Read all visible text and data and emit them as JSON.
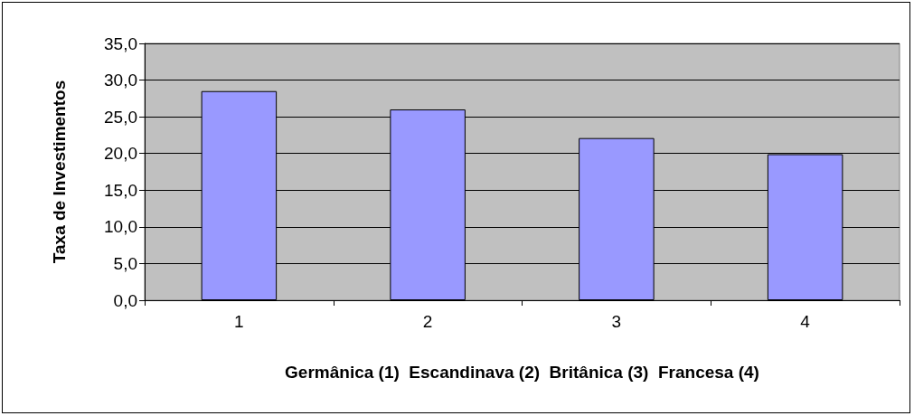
{
  "chart_data": {
    "type": "bar",
    "xlabel": "Germânica (1)  Escandinava (2)  Britânica (3)  Francesa (4)",
    "ylabel": "Taxa de Investimentos",
    "categories": [
      "1",
      "2",
      "3",
      "4"
    ],
    "values": [
      28.5,
      26.0,
      22.1,
      19.9
    ],
    "color": "#9999ff",
    "ylim": [
      0,
      35
    ],
    "yticks": [
      {
        "value": 0,
        "label": "0,0"
      },
      {
        "value": 5,
        "label": "5,0"
      },
      {
        "value": 10,
        "label": "10,0"
      },
      {
        "value": 15,
        "label": "15,0"
      },
      {
        "value": 20,
        "label": "20,0"
      },
      {
        "value": 25,
        "label": "25,0"
      },
      {
        "value": 30,
        "label": "30,0"
      },
      {
        "value": 35,
        "label": "35,0"
      }
    ],
    "grid": "y"
  }
}
